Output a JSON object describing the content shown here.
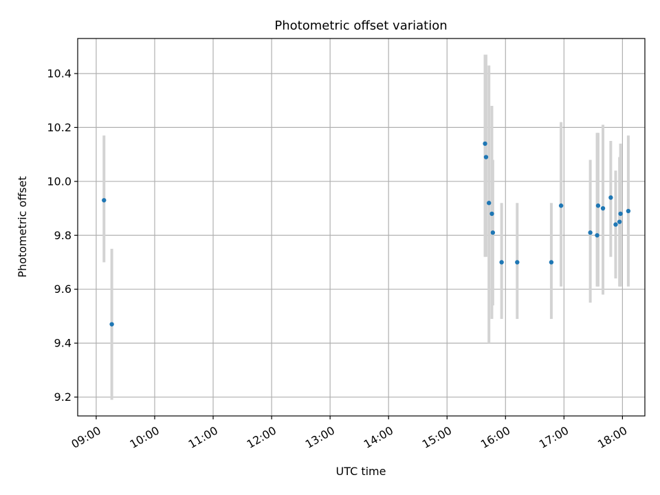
{
  "chart_data": {
    "type": "scatter",
    "title": "Photometric offset variation",
    "xlabel": "UTC time",
    "ylabel": "Photometric offset",
    "x_ticks": [
      "09:00",
      "10:00",
      "11:00",
      "12:00",
      "13:00",
      "14:00",
      "15:00",
      "16:00",
      "17:00",
      "18:00"
    ],
    "y_ticks": [
      "9.2",
      "9.4",
      "9.6",
      "9.8",
      "10.0",
      "10.2",
      "10.4"
    ],
    "xlim": [
      "08:41",
      "18:23"
    ],
    "ylim": [
      9.13,
      10.53
    ],
    "grid": true,
    "marker_color": "#1f77b4",
    "errorbar_color": "#d3d3d3",
    "points": [
      {
        "x": "09:08",
        "y": 9.93,
        "err_low": 9.7,
        "err_high": 10.17
      },
      {
        "x": "09:16",
        "y": 9.47,
        "err_low": 9.19,
        "err_high": 9.75
      },
      {
        "x": "15:39",
        "y": 10.14,
        "err_low": 9.72,
        "err_high": 10.47
      },
      {
        "x": "15:40",
        "y": 10.09,
        "err_low": 9.72,
        "err_high": 10.47
      },
      {
        "x": "15:43",
        "y": 9.92,
        "err_low": 9.4,
        "err_high": 10.43
      },
      {
        "x": "15:46",
        "y": 9.88,
        "err_low": 9.49,
        "err_high": 10.28
      },
      {
        "x": "15:47",
        "y": 9.81,
        "err_low": 9.54,
        "err_high": 10.08
      },
      {
        "x": "15:56",
        "y": 9.7,
        "err_low": 9.49,
        "err_high": 9.92
      },
      {
        "x": "16:12",
        "y": 9.7,
        "err_low": 9.49,
        "err_high": 9.92
      },
      {
        "x": "16:47",
        "y": 9.7,
        "err_low": 9.49,
        "err_high": 9.92
      },
      {
        "x": "16:57",
        "y": 9.91,
        "err_low": 9.61,
        "err_high": 10.22
      },
      {
        "x": "17:27",
        "y": 9.81,
        "err_low": 9.55,
        "err_high": 10.08
      },
      {
        "x": "17:34",
        "y": 9.8,
        "err_low": 9.61,
        "err_high": 10.18
      },
      {
        "x": "17:35",
        "y": 9.91,
        "err_low": 9.61,
        "err_high": 10.18
      },
      {
        "x": "17:40",
        "y": 9.9,
        "err_low": 9.58,
        "err_high": 10.21
      },
      {
        "x": "17:48",
        "y": 9.94,
        "err_low": 9.72,
        "err_high": 10.15
      },
      {
        "x": "17:53",
        "y": 9.84,
        "err_low": 9.64,
        "err_high": 10.04
      },
      {
        "x": "17:57",
        "y": 9.85,
        "err_low": 9.61,
        "err_high": 10.09
      },
      {
        "x": "17:58",
        "y": 9.88,
        "err_low": 9.61,
        "err_high": 10.14
      },
      {
        "x": "18:06",
        "y": 9.89,
        "err_low": 9.61,
        "err_high": 10.17
      }
    ]
  }
}
